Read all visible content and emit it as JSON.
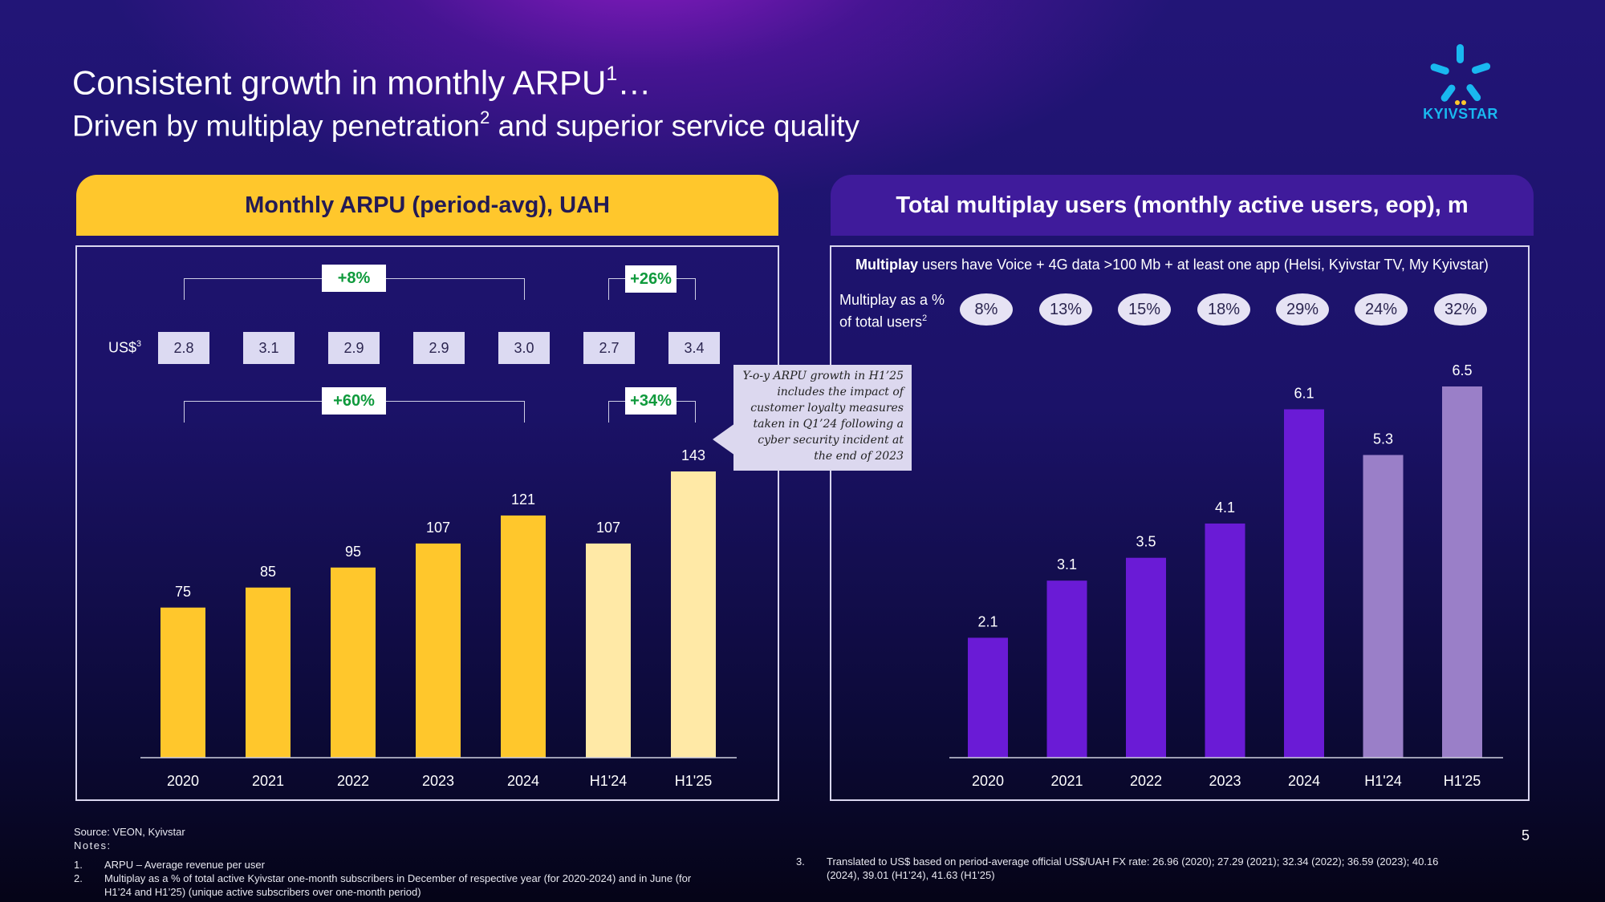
{
  "title": "Consistent growth in monthly ARPU",
  "title_sup": "1",
  "title_suffix": "…",
  "subtitle_pre": "Driven by multiplay penetration",
  "subtitle_sup": "2",
  "subtitle_post": " and superior service quality",
  "logo_text": "KYIVSTAR",
  "colors": {
    "arpu_bar": "#ffc72c",
    "arpu_bar_half": "#ffe9a6",
    "users_bar": "#6a1bd6",
    "users_bar_half": "#9a7fc8",
    "growth_green": "#0f9a3c"
  },
  "left": {
    "header": "Monthly ARPU (period-avg), UAH",
    "usd_label": "US$",
    "usd_sup": "3",
    "usd_values": [
      "2.8",
      "3.1",
      "2.9",
      "2.9",
      "3.0",
      "2.7",
      "3.4"
    ],
    "growth_top": [
      "+8%",
      "+26%"
    ],
    "growth_bottom": [
      "+60%",
      "+34%"
    ],
    "callout": "Y-o-y ARPU growth in H1’25 includes the impact of customer loyalty measures taken in Q1’24 following a cyber security incident at the end of 2023"
  },
  "right": {
    "header": "Total multiplay users (monthly active users, eop), m",
    "subtitle_bold": "Multiplay",
    "subtitle_rest": " users have Voice + 4G data >100 Mb + at least one app (Helsi, Kyivstar TV, My Kyivstar)",
    "mp_label_1": "Multiplay as a %",
    "mp_label_2": "of total users",
    "mp_sup": "2",
    "percents": [
      "8%",
      "13%",
      "15%",
      "18%",
      "29%",
      "24%",
      "32%"
    ]
  },
  "chart_data": [
    {
      "type": "bar",
      "title": "Monthly ARPU (period-avg), UAH",
      "categories": [
        "2020",
        "2021",
        "2022",
        "2023",
        "2024",
        "H1'24",
        "H1'25"
      ],
      "values": [
        75,
        85,
        95,
        107,
        121,
        107,
        143
      ],
      "ylim": [
        0,
        150
      ]
    },
    {
      "type": "bar",
      "title": "Total multiplay users (monthly active users, eop), m",
      "categories": [
        "2020",
        "2021",
        "2022",
        "2023",
        "2024",
        "H1'24",
        "H1'25"
      ],
      "values": [
        2.1,
        3.1,
        3.5,
        4.1,
        6.1,
        5.3,
        6.5
      ],
      "ylim": [
        0,
        7
      ]
    }
  ],
  "page_number": "5",
  "footer": {
    "source": "Source: VEON, Kyivstar",
    "notes_label": "Notes:",
    "note1_num": "1.",
    "note1": "ARPU – Average revenue per user",
    "note2_num": "2.",
    "note2a": "Multiplay as a % of total active Kyivstar one-month subscribers in December of respective year (for 2020-2024) and in June (for",
    "note2b": "H1’24 and H1’25) (unique active subscribers over one-month period)",
    "note3_num": "3.",
    "note3a": "Translated to US$ based on period-average official US$/UAH FX rate: 26.96 (2020); 27.29 (2021); 32.34 (2022); 36.59 (2023); 40.16",
    "note3b": "(2024), 39.01 (H1’24), 41.63 (H1’25)"
  }
}
